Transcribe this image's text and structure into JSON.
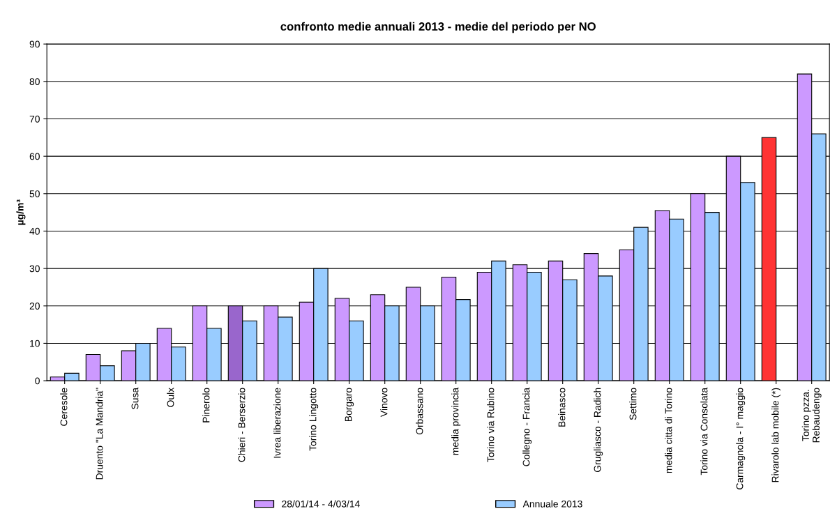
{
  "chart_data": {
    "type": "bar",
    "title": "confronto medie annuali 2013 - medie del periodo per NO",
    "ylabel": "µg/m³",
    "categories": [
      "Ceresole",
      "Druento \"La Mandria\"",
      "Susa",
      "Oulx",
      "Pinerolo",
      "Chieri - Berserzio",
      "Ivrea liberazione",
      "Torino Lingotto",
      "Borgaro",
      "Vinovo",
      "Orbassano",
      "media provincia",
      "Torino via Rubino",
      "Collegno - Francia",
      "Beinasco",
      "Grugliasco - Radich",
      "Settimo",
      "media citta di Torino",
      "Torino via Consolata",
      "Carmagnola - I° maggio",
      "Rivarolo lab mobile (*)",
      "Torino pzza.\nRebaudengo"
    ],
    "series": [
      {
        "name": "28/01/14 - 4/03/14",
        "color": "#cc99ff",
        "colors": [
          "#cc99ff",
          "#cc99ff",
          "#cc99ff",
          "#cc99ff",
          "#cc99ff",
          "#9966cc",
          "#cc99ff",
          "#cc99ff",
          "#cc99ff",
          "#cc99ff",
          "#cc99ff",
          "#cc99ff",
          "#cc99ff",
          "#cc99ff",
          "#cc99ff",
          "#cc99ff",
          "#cc99ff",
          "#cc99ff",
          "#cc99ff",
          "#cc99ff",
          "#ff3333",
          "#cc99ff"
        ],
        "values": [
          1,
          7,
          8,
          14,
          20,
          20,
          20,
          21,
          22,
          23,
          25,
          27.7,
          29,
          31,
          32,
          34,
          35,
          45.5,
          50,
          60,
          65,
          82
        ]
      },
      {
        "name": "Annuale 2013",
        "color": "#99ccff",
        "values": [
          2,
          4,
          10,
          9,
          14,
          16,
          17,
          30,
          16,
          20,
          20,
          21.7,
          32,
          29,
          27,
          28,
          41,
          43.2,
          45,
          53,
          null,
          66
        ]
      }
    ],
    "ylim": [
      0,
      90
    ],
    "yticks": [
      0,
      10,
      20,
      30,
      40,
      50,
      60,
      70,
      80,
      90
    ],
    "grid": "y",
    "legend": "bottom"
  }
}
